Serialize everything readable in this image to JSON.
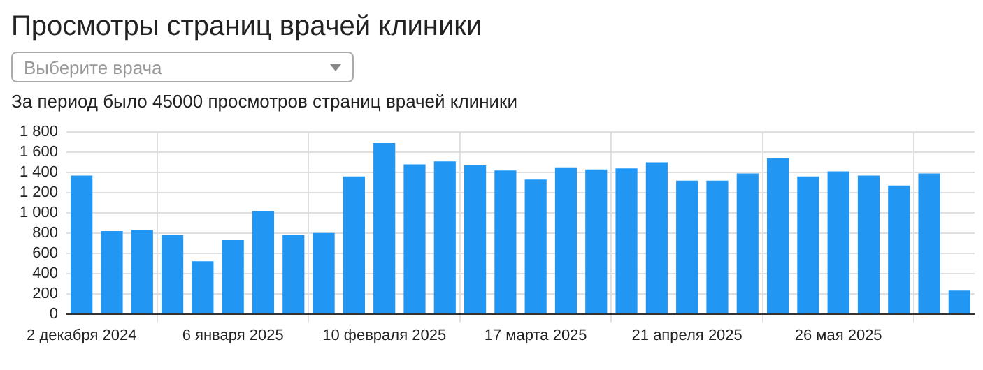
{
  "chart_data": {
    "type": "bar",
    "title": "Просмотры страниц врачей клиники",
    "subtitle": "За период было 45000 просмотров страниц врачей клиники",
    "annotations": [
      "Выберите врача"
    ],
    "categories": [
      "2 декабря 2024",
      null,
      null,
      null,
      null,
      "6 января 2025",
      null,
      null,
      null,
      null,
      "10 февраля 2025",
      null,
      null,
      null,
      null,
      "17 марта 2025",
      null,
      null,
      null,
      null,
      "21 апреля 2025",
      null,
      null,
      null,
      null,
      "26 мая 2025",
      null,
      null,
      null,
      null
    ],
    "values": [
      1370,
      820,
      830,
      780,
      520,
      730,
      1020,
      780,
      800,
      1360,
      1690,
      1480,
      1510,
      1470,
      1420,
      1330,
      1450,
      1430,
      1440,
      1500,
      1320,
      1320,
      1390,
      1540,
      1360,
      1410,
      1370,
      1270,
      1390,
      230
    ],
    "color": "#2196f3",
    "ylim": [
      0,
      1800
    ],
    "yticks": [
      0,
      200,
      400,
      600,
      800,
      1000,
      1200,
      1400,
      1600,
      1800
    ],
    "grid": true,
    "legend": false
  }
}
